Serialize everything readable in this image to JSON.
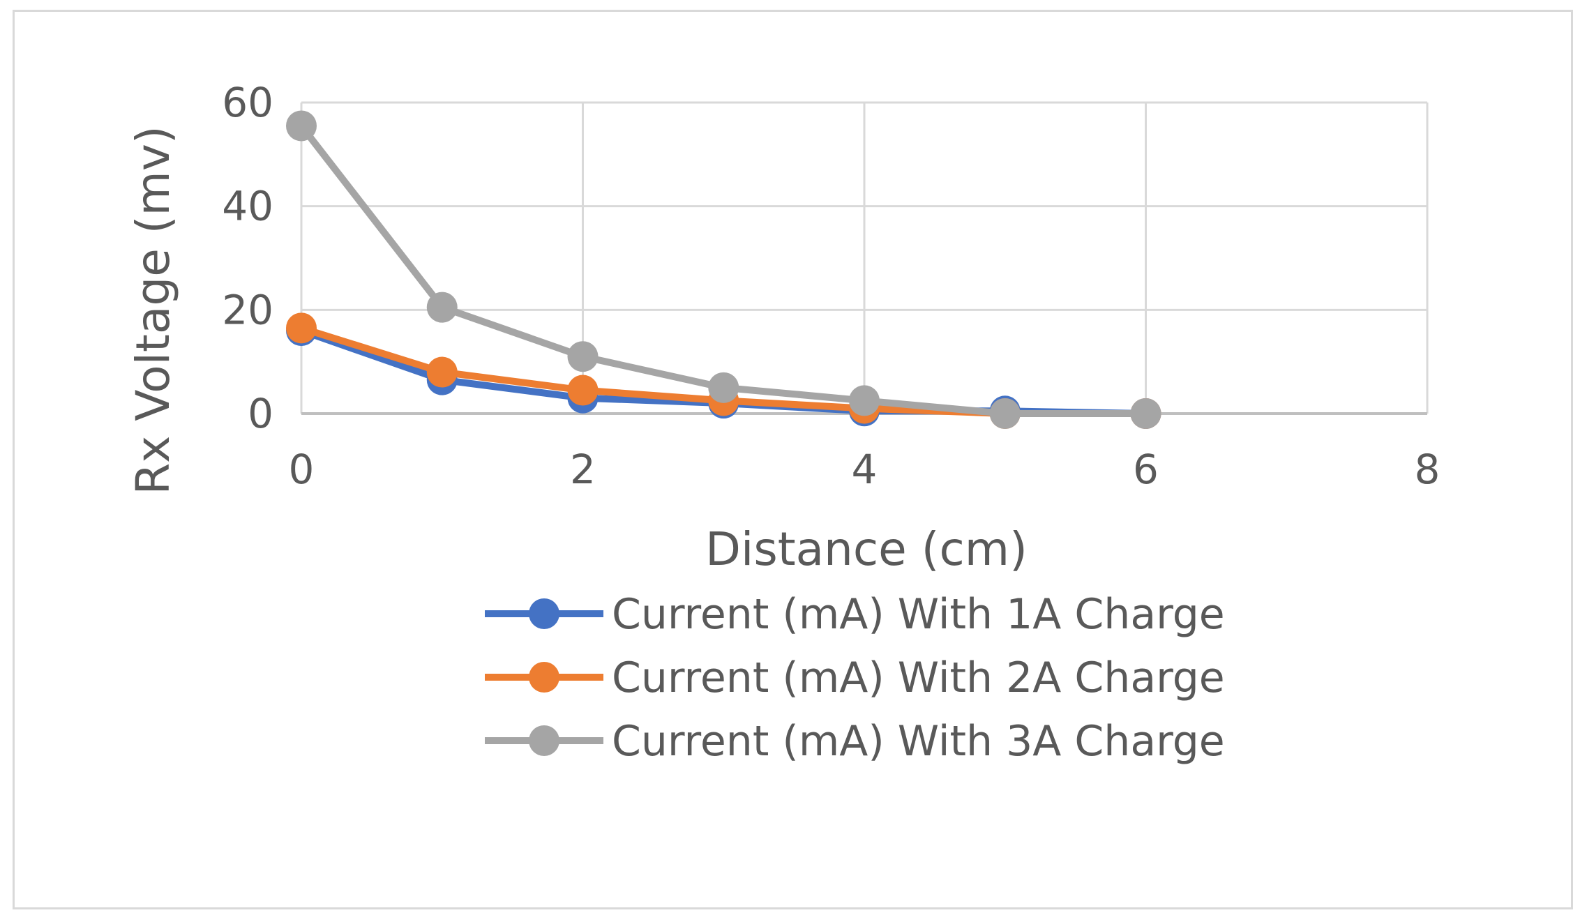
{
  "chart_data": {
    "type": "line",
    "title": "",
    "xlabel": "Distance (cm)",
    "ylabel": "Rx Voltage (mv)",
    "xlim": [
      0,
      8
    ],
    "ylim": [
      0,
      60
    ],
    "x_ticks": [
      "0",
      "2",
      "4",
      "6",
      "8"
    ],
    "y_ticks": [
      "0",
      "20",
      "40",
      "60"
    ],
    "grid": true,
    "legend_position": "bottom",
    "series": [
      {
        "name": "Current (mA) With 1A Charge",
        "color": "#4472C4",
        "x": [
          0,
          1,
          2,
          3,
          4,
          5,
          6
        ],
        "y": [
          16,
          6.5,
          3,
          2,
          0.5,
          0.5,
          0
        ]
      },
      {
        "name": "Current (mA) With 2A Charge",
        "color": "#ED7D31",
        "x": [
          0,
          1,
          2,
          3,
          4,
          5,
          6
        ],
        "y": [
          16.5,
          8,
          4.5,
          2.5,
          1,
          0,
          0
        ]
      },
      {
        "name": "Current (mA) With 3A Charge",
        "color": "#A5A5A5",
        "x": [
          0,
          1,
          2,
          3,
          4,
          5,
          6
        ],
        "y": [
          55.5,
          20.5,
          11,
          5,
          2.5,
          0,
          0
        ]
      }
    ]
  }
}
